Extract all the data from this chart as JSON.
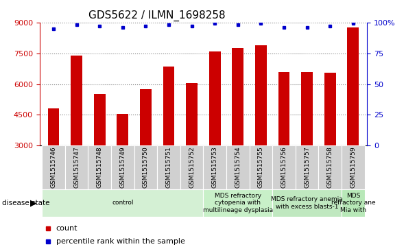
{
  "title": "GDS5622 / ILMN_1698258",
  "samples": [
    "GSM1515746",
    "GSM1515747",
    "GSM1515748",
    "GSM1515749",
    "GSM1515750",
    "GSM1515751",
    "GSM1515752",
    "GSM1515753",
    "GSM1515754",
    "GSM1515755",
    "GSM1515756",
    "GSM1515757",
    "GSM1515758",
    "GSM1515759"
  ],
  "counts": [
    4800,
    7400,
    5500,
    4550,
    5750,
    6850,
    6050,
    7600,
    7750,
    7900,
    6600,
    6600,
    6550,
    8750
  ],
  "percentile_ranks": [
    95,
    98,
    97,
    96,
    97,
    98,
    97,
    99,
    98,
    99,
    96,
    96,
    97,
    99
  ],
  "ylim_left": [
    3000,
    9000
  ],
  "ylim_right": [
    0,
    100
  ],
  "yticks_left": [
    3000,
    4500,
    6000,
    7500,
    9000
  ],
  "yticks_right": [
    0,
    25,
    50,
    75,
    100
  ],
  "bar_color": "#cc0000",
  "dot_color": "#0000cc",
  "bar_width": 0.5,
  "background_color": "#ffffff",
  "disease_groups": [
    {
      "label": "control",
      "start": 0,
      "end": 7,
      "color": "#d4f0d4"
    },
    {
      "label": "MDS refractory\ncytopenia with\nmultilineage dysplasia",
      "start": 7,
      "end": 10,
      "color": "#c8f0c8"
    },
    {
      "label": "MDS refractory anemia\nwith excess blasts-1",
      "start": 10,
      "end": 13,
      "color": "#c0e8c0"
    },
    {
      "label": "MDS\nrefractory ane\nMia with",
      "start": 13,
      "end": 14,
      "color": "#b8e8b8"
    }
  ],
  "disease_state_label": "disease state",
  "legend_count_label": "count",
  "legend_pct_label": "percentile rank within the sample",
  "tick_label_color_left": "#cc0000",
  "tick_label_color_right": "#0000cc",
  "title_fontsize": 11,
  "tick_fontsize": 8,
  "sample_label_fontsize": 6.5,
  "disease_label_fontsize": 6.5,
  "legend_fontsize": 8
}
